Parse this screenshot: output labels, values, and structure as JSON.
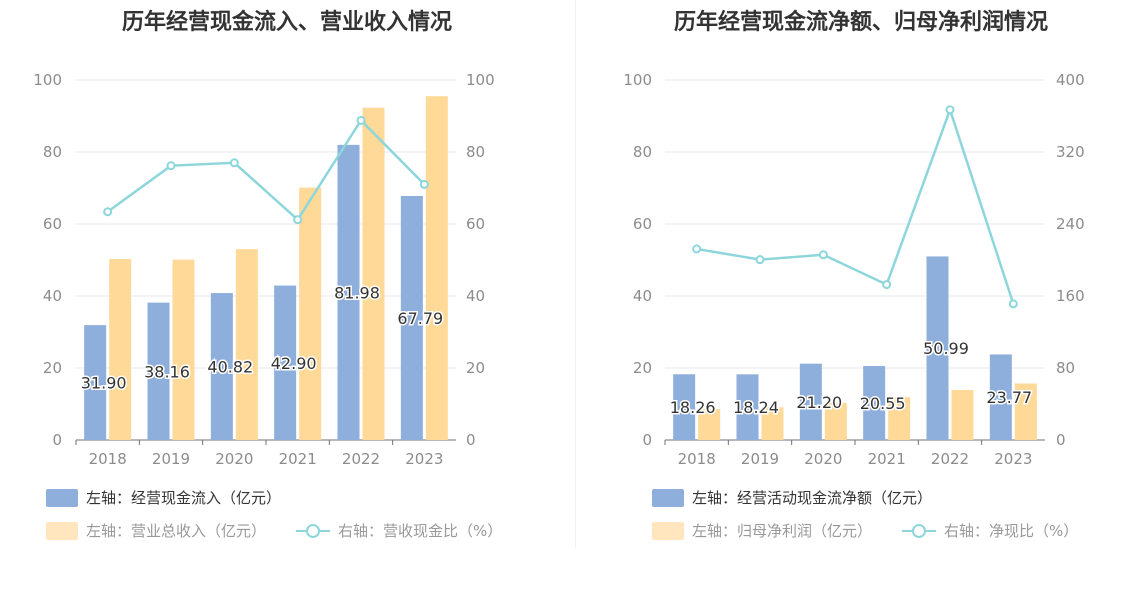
{
  "colors": {
    "bar1": "#8eaedc",
    "bar2": "#ffd998",
    "line": "#8dd6db",
    "grid": "#e6e9f0",
    "text": "#333333",
    "muted": "#8c8c8c"
  },
  "charts": [
    {
      "title": "历年经营现金流入、营业收入情况",
      "legend": {
        "bar1": "左轴：经营现金流入（亿元）",
        "bar2": "左轴：营业总收入（亿元）",
        "line": "右轴：营收现金比（%）"
      }
    },
    {
      "title": "历年经营现金流净额、归母净利润情况",
      "legend": {
        "bar1": "左轴：经营活动现金流净额（亿元）",
        "bar2": "左轴：归母净利润（亿元）",
        "line": "右轴：净现比（%）"
      }
    }
  ],
  "chart_data": [
    {
      "type": "bar",
      "title": "历年经营现金流入、营业收入情况",
      "categories": [
        "2018",
        "2019",
        "2020",
        "2021",
        "2022",
        "2023"
      ],
      "left_axis": {
        "min": 0,
        "max": 100,
        "ticks": [
          "0",
          "20",
          "40",
          "60",
          "80",
          "100"
        ]
      },
      "right_axis": {
        "min": 0,
        "max": 100,
        "ticks": [
          "0",
          "20",
          "40",
          "60",
          "80",
          "100"
        ]
      },
      "series": [
        {
          "name": "左轴：经营现金流入（亿元）",
          "type": "bar",
          "axis": "left",
          "values": [
            31.9,
            38.16,
            40.82,
            42.9,
            81.98,
            67.79
          ],
          "labels": [
            "31.90",
            "38.16",
            "40.82",
            "42.90",
            "81.98",
            "67.79"
          ]
        },
        {
          "name": "左轴：营业总收入（亿元）",
          "type": "bar",
          "axis": "left",
          "values": [
            50.3,
            50.1,
            53.0,
            70.1,
            92.3,
            95.5
          ]
        },
        {
          "name": "右轴：营收现金比（%）",
          "type": "line",
          "axis": "right",
          "values": [
            63.4,
            76.2,
            77.0,
            61.2,
            88.8,
            71.0
          ]
        }
      ],
      "grid": true,
      "legend_position": "bottom"
    },
    {
      "type": "bar",
      "title": "历年经营现金流净额、归母净利润情况",
      "categories": [
        "2018",
        "2019",
        "2020",
        "2021",
        "2022",
        "2023"
      ],
      "left_axis": {
        "min": 0,
        "max": 100,
        "ticks": [
          "0",
          "20",
          "40",
          "60",
          "80",
          "100"
        ]
      },
      "right_axis": {
        "min": 0,
        "max": 400,
        "ticks": [
          "0",
          "80",
          "160",
          "240",
          "320",
          "400"
        ]
      },
      "series": [
        {
          "name": "左轴：经营活动现金流净额（亿元）",
          "type": "bar",
          "axis": "left",
          "values": [
            18.26,
            18.24,
            21.2,
            20.55,
            50.99,
            23.77
          ],
          "labels": [
            "18.26",
            "18.24",
            "21.20",
            "20.55",
            "50.99",
            "23.77"
          ]
        },
        {
          "name": "左轴：归母净利润（亿元）",
          "type": "bar",
          "axis": "left",
          "values": [
            8.6,
            9.1,
            10.3,
            11.9,
            13.9,
            15.7
          ]
        },
        {
          "name": "右轴：净现比（%）",
          "type": "line",
          "axis": "right",
          "values": [
            212.3,
            200.4,
            205.8,
            172.7,
            367.0,
            151.3
          ]
        }
      ],
      "grid": true,
      "legend_position": "bottom"
    }
  ]
}
